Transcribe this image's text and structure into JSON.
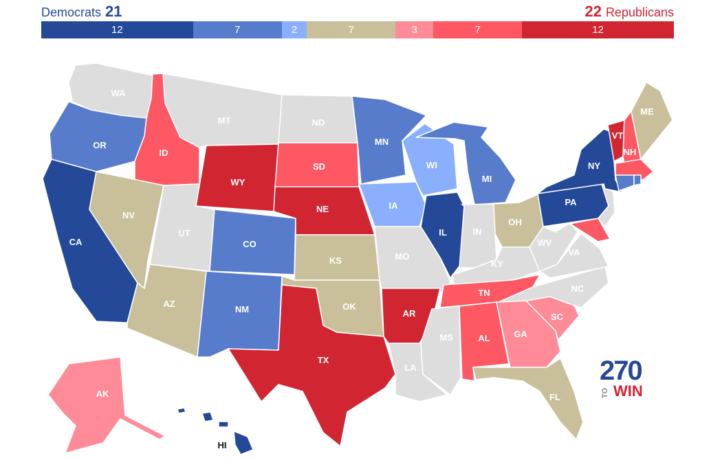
{
  "header": {
    "dem_label": "Democrats",
    "dem_count": "21",
    "rep_count": "22",
    "rep_label": "Republicans"
  },
  "tally": [
    {
      "value": "12",
      "color": "#244999",
      "weight": 12
    },
    {
      "value": "7",
      "color": "#577ccc",
      "weight": 7
    },
    {
      "value": "2",
      "color": "#8aafff",
      "weight": 2
    },
    {
      "value": "7",
      "color": "#c9c09b",
      "weight": 7
    },
    {
      "value": "3",
      "color": "#ff8b98",
      "weight": 3
    },
    {
      "value": "7",
      "color": "#ff5865",
      "weight": 7
    },
    {
      "value": "12",
      "color": "#d22532",
      "weight": 12
    }
  ],
  "colors": {
    "safe_dem": "#244999",
    "likely_dem": "#577ccc",
    "lean_dem": "#8aafff",
    "tossup": "#c9c09b",
    "lean_rep": "#ff8b98",
    "likely_rep": "#ff5865",
    "safe_rep": "#d22532",
    "no_race": "#dddddd"
  },
  "states": {
    "WA": "WA",
    "OR": "OR",
    "CA": "CA",
    "ID": "ID",
    "NV": "NV",
    "MT": "MT",
    "WY": "WY",
    "UT": "UT",
    "AZ": "AZ",
    "CO": "CO",
    "NM": "NM",
    "ND": "ND",
    "SD": "SD",
    "NE": "NE",
    "KS": "KS",
    "OK": "OK",
    "TX": "TX",
    "MN": "MN",
    "IA": "IA",
    "MO": "MO",
    "AR": "AR",
    "LA": "LA",
    "WI": "WI",
    "IL": "IL",
    "MI": "MI",
    "IN": "IN",
    "OH": "OH",
    "KY": "KY",
    "TN": "TN",
    "MS": "MS",
    "AL": "AL",
    "GA": "GA",
    "FL": "FL",
    "SC": "SC",
    "NC": "NC",
    "VA": "VA",
    "WV": "WV",
    "PA": "PA",
    "NY": "NY",
    "VT": "VT",
    "NH": "NH",
    "ME": "ME",
    "AK": "AK",
    "HI": "HI"
  },
  "logo": {
    "number": "270",
    "to": "TO",
    "win": "WIN"
  }
}
